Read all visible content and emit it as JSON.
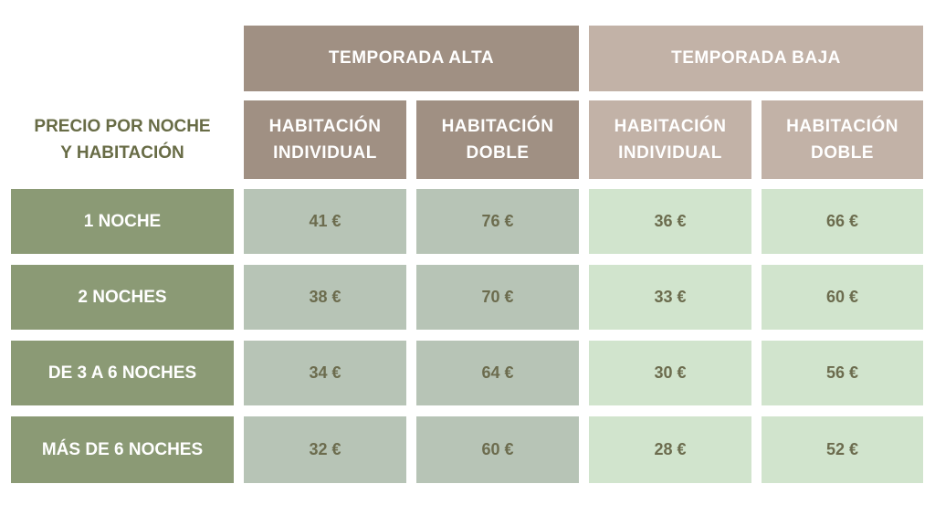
{
  "table": {
    "corner_label": [
      "PRECIO POR NOCHE",
      "Y HABITACIÓN"
    ],
    "seasons": {
      "alta": "TEMPORADA ALTA",
      "baja": "TEMPORADA BAJA"
    },
    "room_types": {
      "alta_individual": [
        "HABITACIÓN",
        "INDIVIDUAL"
      ],
      "alta_doble": [
        "HABITACIÓN",
        "DOBLE"
      ],
      "baja_individual": [
        "HABITACIÓN",
        "INDIVIDUAL"
      ],
      "baja_doble": [
        "HABITACIÓN",
        "DOBLE"
      ]
    },
    "rows": [
      {
        "label": "1 NOCHE",
        "prices": [
          "41 €",
          "76 €",
          "36 €",
          "66 €"
        ]
      },
      {
        "label": "2 NOCHES",
        "prices": [
          "38 €",
          "70 €",
          "33 €",
          "60 €"
        ]
      },
      {
        "label": "DE 3 A 6 NOCHES",
        "prices": [
          "34 €",
          "64 €",
          "30 €",
          "56 €"
        ]
      },
      {
        "label": "MÁS DE 6 NOCHES",
        "prices": [
          "32 €",
          "60 €",
          "28 €",
          "52 €"
        ]
      }
    ],
    "colors": {
      "alta_header": "#a09083",
      "baja_header": "#c2b2a7",
      "row_label": "#8b9a75",
      "alta_cell": "#b7c4b6",
      "baja_cell": "#d1e4cd",
      "price_text": "#6c6c4e",
      "corner_text": "#686c46"
    }
  }
}
